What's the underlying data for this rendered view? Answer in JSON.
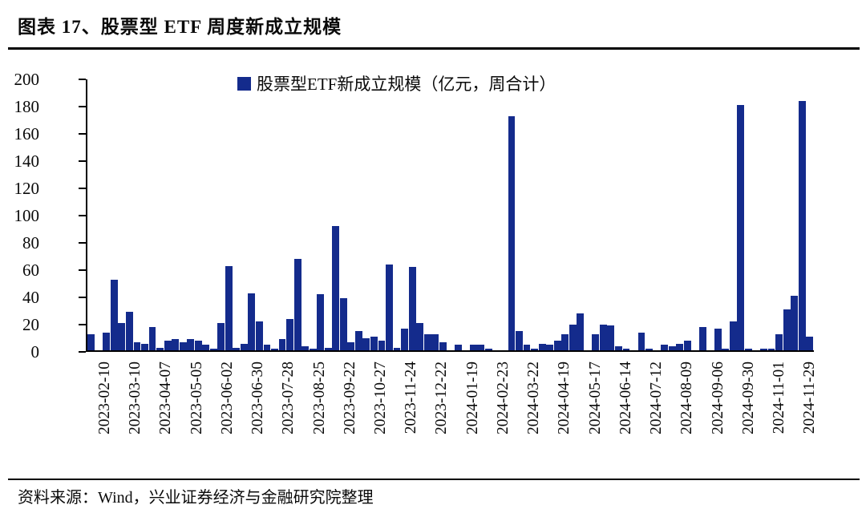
{
  "title": "图表 17、股票型 ETF 周度新成立规模",
  "legend_label": "股票型ETF新成立规模（亿元，周合计）",
  "source": "资料来源：Wind，兴业证券经济与金融研究院整理",
  "colors": {
    "bar": "#142b8c",
    "axis": "#000000",
    "text": "#0a0a0a"
  },
  "chart_data": {
    "type": "bar",
    "title": "股票型ETF新成立规模（亿元，周合计）",
    "ylabel": "",
    "xlabel": "",
    "ylim": [
      0,
      200
    ],
    "ytick_step": 20,
    "grid": false,
    "legend_position": "top-center",
    "bar_color": "#142b8c",
    "x_is_weekly_dates": true,
    "tick_labels": [
      "2023-02-10",
      "2023-03-10",
      "2023-04-07",
      "2023-05-05",
      "2023-06-02",
      "2023-06-30",
      "2023-07-28",
      "2023-08-25",
      "2023-09-22",
      "2023-10-27",
      "2023-11-24",
      "2023-12-22",
      "2024-01-19",
      "2024-02-23",
      "2024-03-22",
      "2024-04-19",
      "2024-05-17",
      "2024-06-14",
      "2024-07-12",
      "2024-08-09",
      "2024-09-06",
      "2024-09-30",
      "2024-11-01",
      "2024-11-29"
    ],
    "tick_start_index": 2,
    "tick_every": 4,
    "values": [
      12,
      0,
      13,
      52,
      20,
      28,
      6,
      5,
      17,
      2,
      7,
      8,
      6,
      8,
      7,
      4,
      1,
      20,
      62,
      2,
      5,
      42,
      21,
      4,
      1,
      8,
      23,
      67,
      3,
      1,
      41,
      2,
      91,
      38,
      6,
      14,
      9,
      10,
      7,
      63,
      2,
      16,
      61,
      20,
      12,
      12,
      6,
      0,
      4,
      0,
      4,
      4,
      1,
      0,
      0,
      172,
      14,
      4,
      1,
      5,
      4,
      7,
      12,
      19,
      27,
      0,
      12,
      19,
      18,
      3,
      1,
      0,
      13,
      1,
      0,
      4,
      3,
      5,
      7,
      0,
      17,
      0,
      16,
      1,
      21,
      180,
      1,
      0,
      1,
      1,
      12,
      30,
      40,
      183,
      10
    ]
  }
}
